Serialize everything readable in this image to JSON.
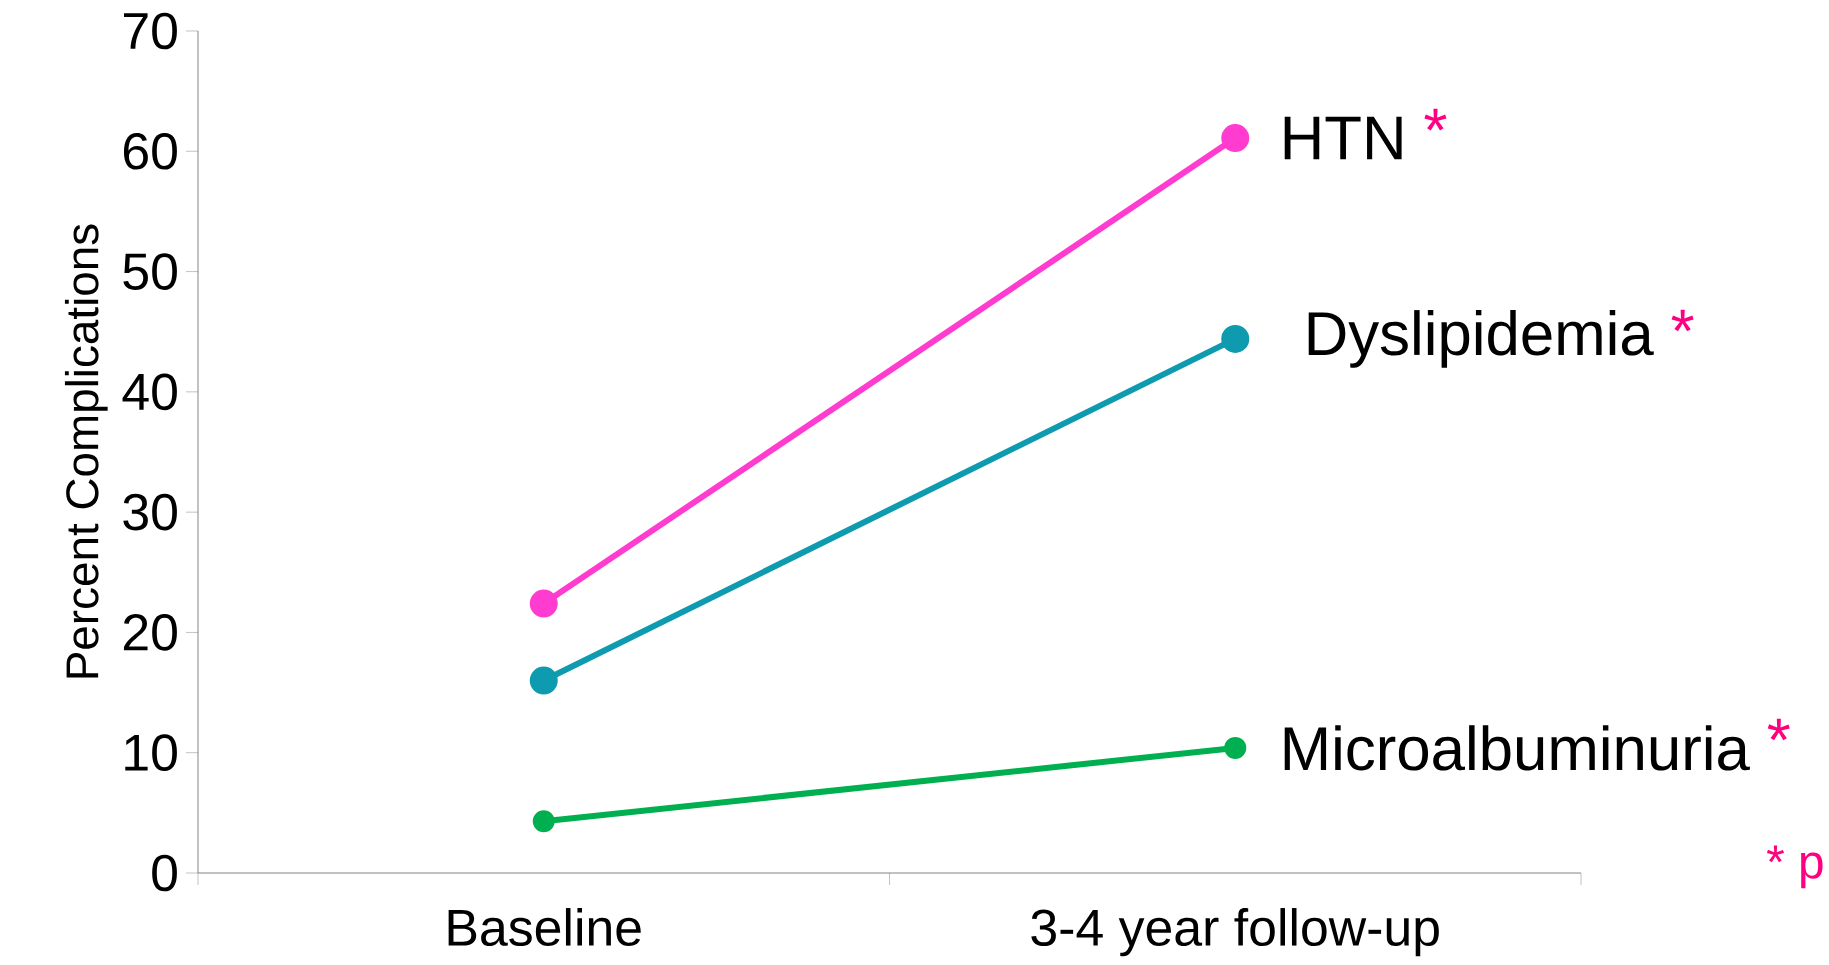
{
  "chart_data": {
    "type": "line",
    "ylabel": "Percent Complications",
    "categories": [
      "Baseline",
      "3-4 year follow-up"
    ],
    "series": [
      {
        "name": "HTN",
        "color": "#ff3ccf",
        "values": [
          22.4,
          61.1
        ]
      },
      {
        "name": "Dyslipidemia",
        "color": "#0e9aaf",
        "values": [
          16.0,
          44.4
        ]
      },
      {
        "name": "Microalbuminuria",
        "color": "#00b050",
        "values": [
          4.3,
          10.4
        ]
      }
    ],
    "annotations": [
      "*",
      "*",
      "*",
      "* p"
    ],
    "ylim": [
      0,
      70
    ],
    "yticks": [
      0,
      10,
      20,
      30,
      40,
      50,
      60,
      70
    ],
    "grid": false,
    "legend": "right",
    "marker": "circle",
    "line_style": "solid"
  }
}
